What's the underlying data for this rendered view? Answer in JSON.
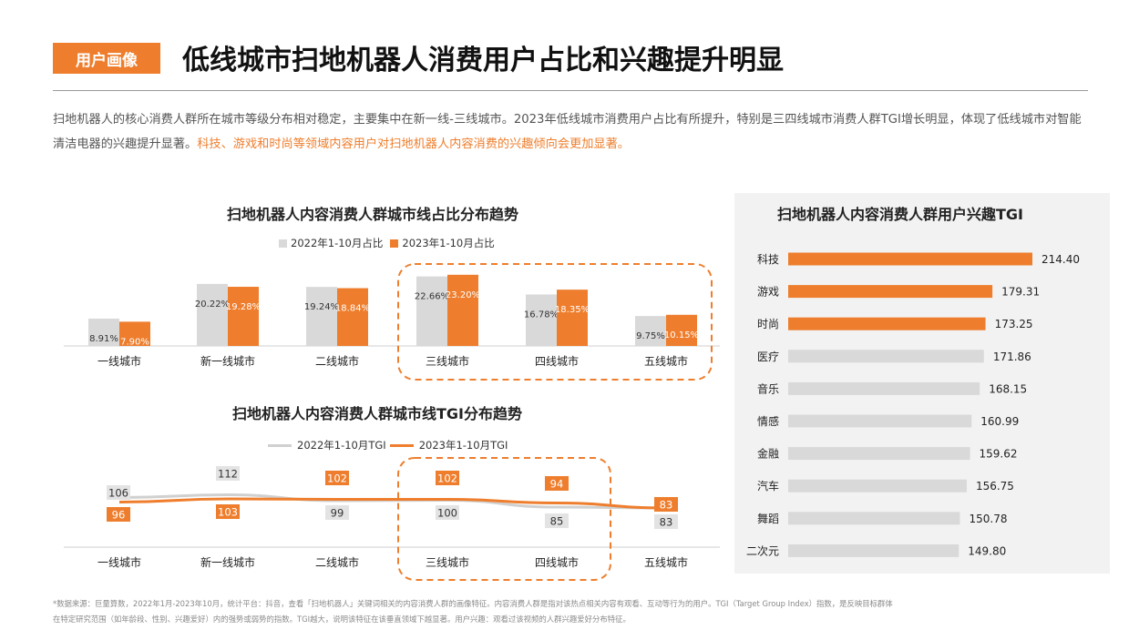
{
  "header": {
    "badge": "用户画像",
    "title": "低线城市扫地机器人消费用户占比和兴趣提升明显"
  },
  "intro": {
    "text_normal": "扫地机器人的核心消费人群所在城市等级分布相对稳定，主要集中在新一线-三线城市。2023年低线城市消费用户占比有所提升，特别是三四线城市消费人群TGI增长明显，体现了低线城市对智能清洁电器的兴趣提升显著。",
    "text_highlight": "科技、游戏和时尚等领域内容用户对扫地机器人内容消费的兴趣倾向会更加显著。"
  },
  "colors": {
    "accent": "#ee7e2d",
    "gray": "#d9d9d9",
    "line_gray": "#d0d0d0"
  },
  "chart_data": [
    {
      "type": "bar",
      "title": "扫地机器人内容消费人群城市线占比分布趋势",
      "categories": [
        "一线城市",
        "新一线城市",
        "二线城市",
        "三线城市",
        "四线城市",
        "五线城市"
      ],
      "series": [
        {
          "name": "2022年1-10月占比",
          "values": [
            8.91,
            20.22,
            19.24,
            22.66,
            16.78,
            9.75
          ],
          "labels": [
            "8.91%",
            "20.22%",
            "19.24%",
            "22.66%",
            "16.78%",
            "9.75%"
          ],
          "color": "#d9d9d9"
        },
        {
          "name": "2023年1-10月占比",
          "values": [
            7.9,
            19.28,
            18.84,
            23.2,
            18.35,
            10.15
          ],
          "labels": [
            "7.90%",
            "19.28%",
            "18.84%",
            "23.20%",
            "18.35%",
            "10.15%"
          ],
          "color": "#ee7e2d"
        }
      ],
      "highlight": [
        "三线城市",
        "四线城市",
        "五线城市"
      ]
    },
    {
      "type": "line",
      "title": "扫地机器人内容消费人群城市线TGI分布趋势",
      "categories": [
        "一线城市",
        "新一线城市",
        "二线城市",
        "三线城市",
        "四线城市",
        "五线城市"
      ],
      "series": [
        {
          "name": "2022年1-10月TGI",
          "values": [
            106,
            112,
            99,
            100,
            85,
            83
          ],
          "color": "#d0d0d0"
        },
        {
          "name": "2023年1-10月TGI",
          "values": [
            96,
            103,
            102,
            102,
            94,
            83
          ],
          "color": "#ee7e2d"
        }
      ],
      "highlight": [
        "三线城市",
        "四线城市"
      ]
    },
    {
      "type": "bar",
      "orientation": "horizontal",
      "title": "扫地机器人内容消费人群用户兴趣TGI",
      "categories": [
        "科技",
        "游戏",
        "时尚",
        "医疗",
        "音乐",
        "情感",
        "金融",
        "汽车",
        "舞蹈",
        "二次元"
      ],
      "values": [
        214.4,
        179.31,
        173.25,
        171.86,
        168.15,
        160.99,
        159.62,
        156.75,
        150.78,
        149.8
      ],
      "labels": [
        "214.40",
        "179.31",
        "173.25",
        "171.86",
        "168.15",
        "160.99",
        "159.62",
        "156.75",
        "150.78",
        "149.80"
      ],
      "highlighted_count": 3
    }
  ],
  "footnote": {
    "line1": "*数据来源：巨量算数，2022年1月-2023年10月，统计平台：抖音，查看「扫地机器人」关键词相关的内容消费人群的画像特征。内容消费人群是指对该热点相关内容有观看、互动等行为的用户。TGI（Target Group Index）指数，是反映目标群体",
    "line2": "在特定研究范围（如年龄段、性别、兴趣爱好）内的强势或弱势的指数。TGI越大，说明该特征在该垂直领域下越显著。用户兴趣：观看过该视频的人群兴趣爱好分布特征。"
  }
}
